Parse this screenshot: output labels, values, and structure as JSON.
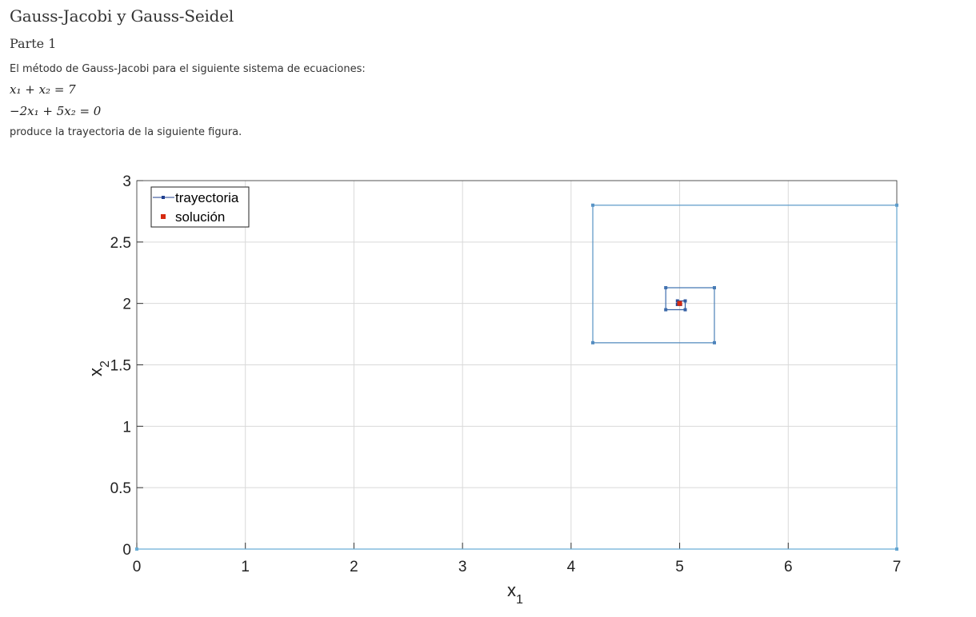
{
  "page": {
    "title": "Gauss-Jacobi y Gauss-Seidel",
    "section": "Parte 1",
    "intro": "El método de Gauss-Jacobi para el siguiente sistema de ecuaciones:",
    "equation1": "x₁ + x₂ = 7",
    "equation2": "−2x₁ + 5x₂ = 0",
    "outro": "produce la trayectoria de la siguiente figura."
  },
  "colors": {
    "trajectory_dark": "#1f3f8f",
    "trajectory_light": "#6aaed6",
    "solution": "#d62a10",
    "grid": "#d9d9d9",
    "axis": "#333333"
  },
  "chart_data": {
    "type": "line",
    "title": "",
    "xlabel": "x",
    "xlabel_sub": "1",
    "ylabel": "x",
    "ylabel_sub": "2",
    "xlim": [
      0,
      7
    ],
    "ylim": [
      0,
      3
    ],
    "xticks": [
      0,
      1,
      2,
      3,
      4,
      5,
      6,
      7
    ],
    "yticks": [
      0,
      0.5,
      1,
      1.5,
      2,
      2.5,
      3
    ],
    "xtick_labels": [
      "0",
      "1",
      "2",
      "3",
      "4",
      "5",
      "6",
      "7"
    ],
    "ytick_labels": [
      "0",
      "0.5",
      "1",
      "1.5",
      "2",
      "2.5",
      "3"
    ],
    "grid": true,
    "legend_position": "top-left",
    "series": [
      {
        "name": "trayectoria",
        "x": [
          0,
          7,
          7,
          4.2,
          4.2,
          5.32,
          5.32,
          4.872,
          4.872,
          5.0512,
          5.0512,
          4.97952,
          4.97952,
          5.008192
        ],
        "y": [
          0,
          0,
          2.8,
          2.8,
          1.68,
          1.68,
          2.128,
          2.128,
          1.9488,
          1.9488,
          2.02048,
          2.02048,
          1.991808,
          1.991808
        ]
      },
      {
        "name": "solución",
        "x": [
          5
        ],
        "y": [
          2
        ]
      }
    ]
  }
}
